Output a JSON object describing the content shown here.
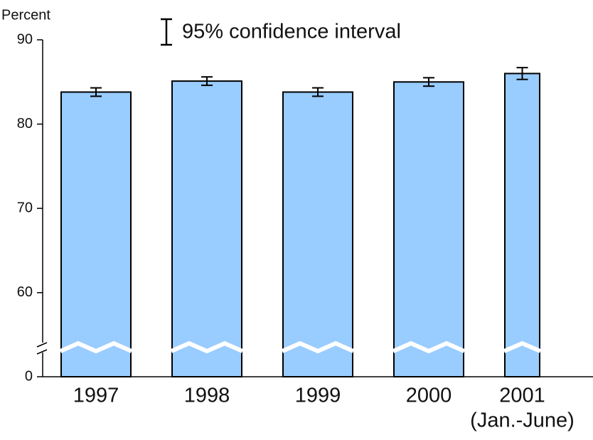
{
  "chart_data": {
    "type": "bar",
    "y_label": "Percent",
    "legend": "95% confidence interval",
    "categories": [
      "1997",
      "1998",
      "1999",
      "2000",
      "2001"
    ],
    "category_notes": [
      null,
      null,
      null,
      null,
      "(Jan.-June)"
    ],
    "values": [
      83.8,
      85.1,
      83.8,
      85.0,
      86.0
    ],
    "errors": [
      0.5,
      0.5,
      0.5,
      0.5,
      0.7
    ],
    "bar_width_fraction": [
      1,
      1,
      1,
      1,
      0.5
    ],
    "color": "#99ccff",
    "ylim": [
      0,
      90
    ],
    "yticks": [
      0,
      60,
      70,
      80,
      90
    ],
    "axis_break": [
      0,
      55
    ]
  }
}
